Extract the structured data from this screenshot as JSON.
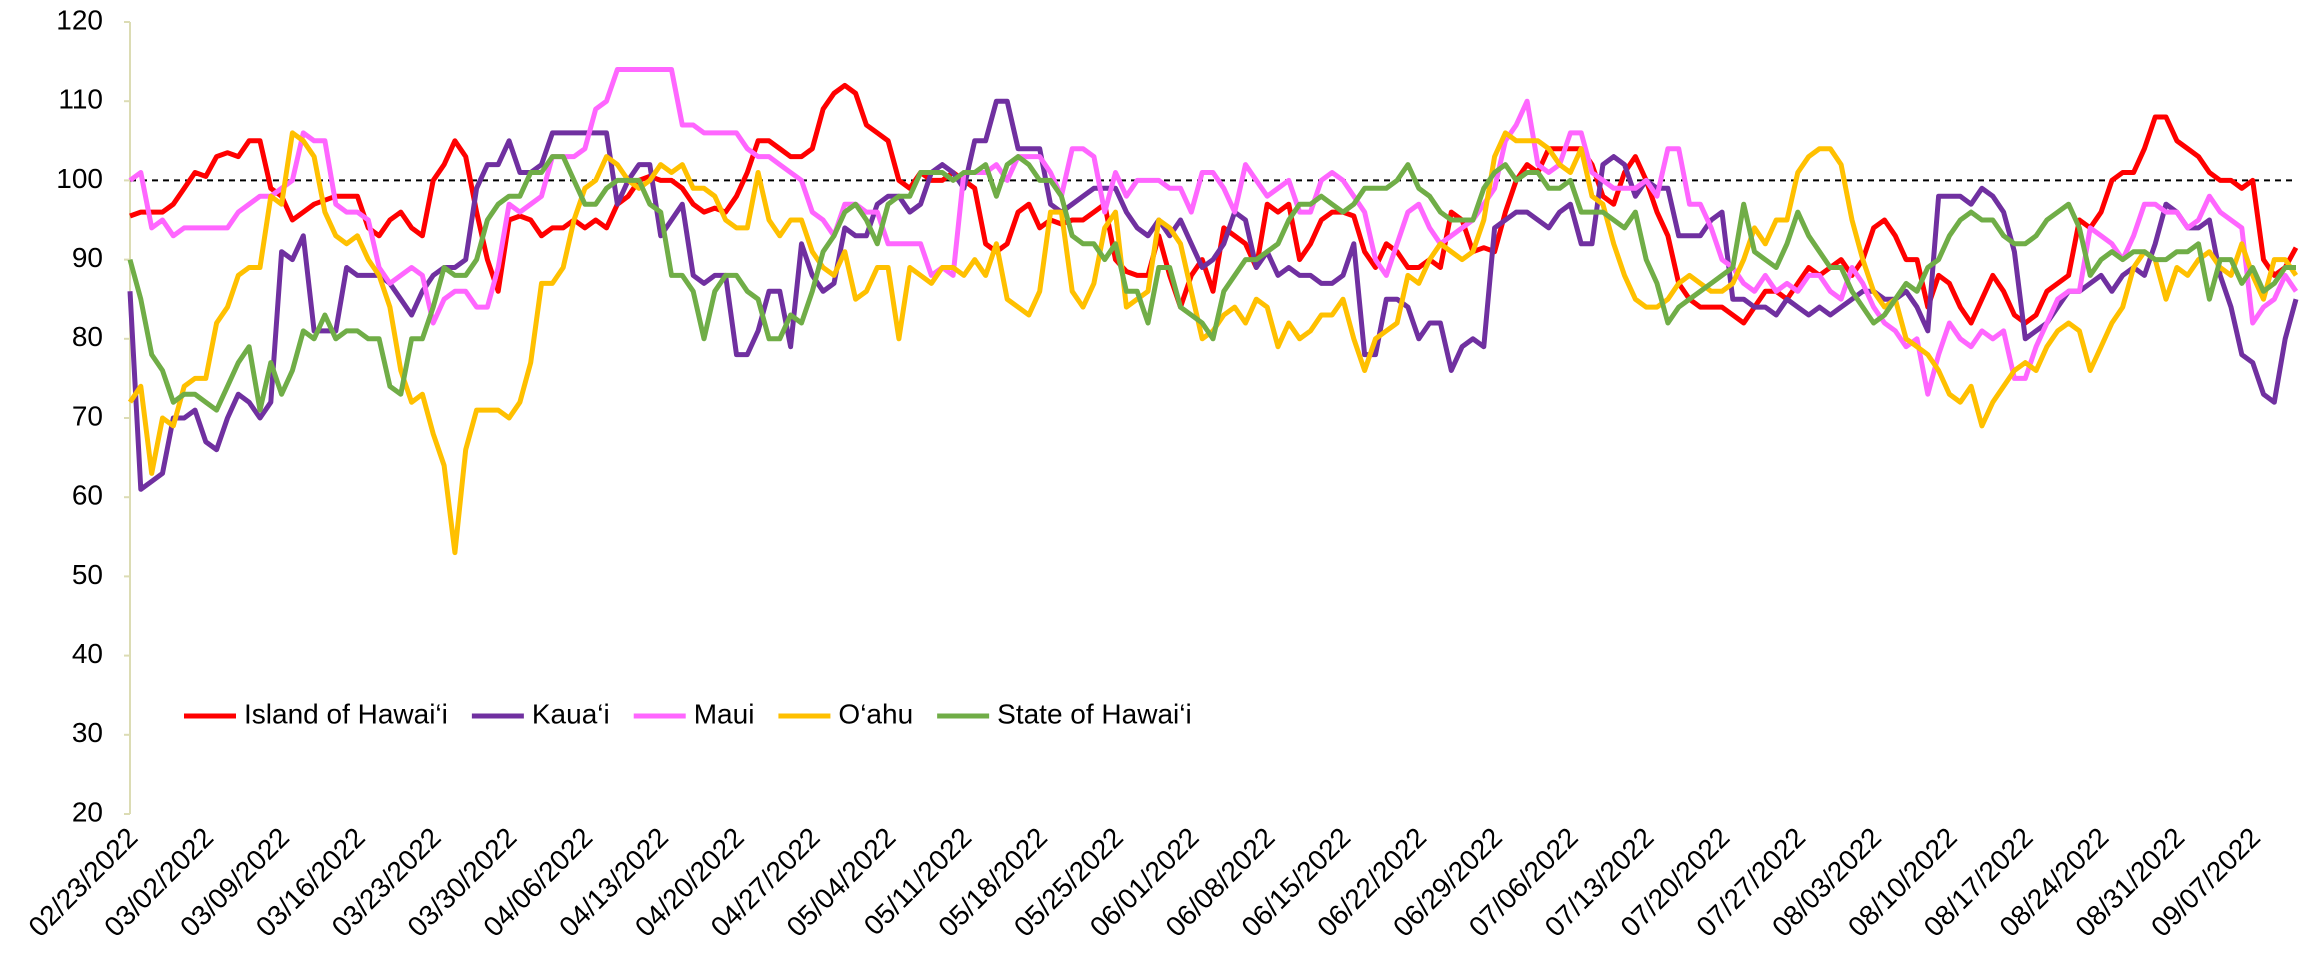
{
  "chart_data": {
    "type": "line",
    "categories": [
      "02/23/2022",
      null,
      null,
      null,
      null,
      null,
      null,
      "03/02/2022",
      null,
      null,
      null,
      null,
      null,
      null,
      "03/09/2022",
      null,
      null,
      null,
      null,
      null,
      null,
      "03/16/2022",
      null,
      null,
      null,
      null,
      null,
      null,
      "03/23/2022",
      null,
      null,
      null,
      null,
      null,
      null,
      "03/30/2022",
      null,
      null,
      null,
      null,
      null,
      null,
      "04/06/2022",
      null,
      null,
      null,
      null,
      null,
      null,
      "04/13/2022",
      null,
      null,
      null,
      null,
      null,
      null,
      "04/20/2022",
      null,
      null,
      null,
      null,
      null,
      null,
      "04/27/2022",
      null,
      null,
      null,
      null,
      null,
      null,
      "05/04/2022",
      null,
      null,
      null,
      null,
      null,
      null,
      "05/11/2022",
      null,
      null,
      null,
      null,
      null,
      null,
      "05/18/2022",
      null,
      null,
      null,
      null,
      null,
      null,
      "05/25/2022",
      null,
      null,
      null,
      null,
      null,
      null,
      "06/01/2022",
      null,
      null,
      null,
      null,
      null,
      null,
      "06/08/2022",
      null,
      null,
      null,
      null,
      null,
      null,
      "06/15/2022",
      null,
      null,
      null,
      null,
      null,
      null,
      "06/22/2022",
      null,
      null,
      null,
      null,
      null,
      null,
      "06/29/2022",
      null,
      null,
      null,
      null,
      null,
      null,
      "07/06/2022",
      null,
      null,
      null,
      null,
      null,
      null,
      "07/13/2022",
      null,
      null,
      null,
      null,
      null,
      null,
      "07/20/2022",
      null,
      null,
      null,
      null,
      null,
      null,
      "07/27/2022",
      null,
      null,
      null,
      null,
      null,
      null,
      "08/03/2022",
      null,
      null,
      null,
      null,
      null,
      null,
      "08/10/2022",
      null,
      null,
      null,
      null,
      null,
      null,
      "08/17/2022",
      null,
      null,
      null,
      null,
      null,
      null,
      "08/24/2022",
      null,
      null,
      null,
      null,
      null,
      null,
      "08/31/2022",
      null,
      null,
      null,
      null,
      null,
      null,
      "09/07/2022",
      null,
      null,
      null,
      null
    ],
    "series": [
      {
        "name": "Island of Hawai‘i",
        "color": "#ff0000",
        "values": [
          95.5,
          96,
          96,
          96,
          97,
          99,
          101,
          100.5,
          103,
          103.5,
          103,
          105,
          105,
          99,
          98,
          95,
          96,
          97,
          97.5,
          98,
          98,
          98,
          94,
          93,
          95,
          96,
          94,
          93,
          100,
          102,
          105,
          103,
          96,
          90,
          86,
          95,
          95.5,
          95,
          93,
          94,
          94,
          95,
          94,
          95,
          94,
          97,
          98,
          100,
          100.5,
          100,
          100,
          99,
          97,
          96,
          96.5,
          96,
          98,
          101,
          105,
          105,
          104,
          103,
          103,
          104,
          109,
          111,
          112,
          111,
          107,
          106,
          105,
          100,
          99,
          101,
          100,
          100,
          101,
          100,
          99,
          92,
          91,
          92,
          96,
          97,
          94,
          95,
          94.5,
          95,
          95,
          96,
          97,
          90,
          88.5,
          88,
          88,
          93,
          88,
          84,
          88,
          90,
          86,
          94,
          93,
          92,
          89,
          97,
          96,
          97,
          90,
          92,
          95,
          96,
          96,
          95.5,
          91,
          89,
          92,
          91,
          89,
          89,
          90,
          89,
          96,
          95,
          91,
          91.5,
          91,
          96,
          100,
          102,
          101,
          104,
          104,
          104,
          104,
          102,
          98,
          97,
          101,
          103,
          100,
          96,
          93,
          87,
          85,
          84,
          84,
          84,
          83,
          82,
          84,
          86,
          86,
          85,
          87,
          89,
          88,
          89,
          90,
          88,
          90,
          94,
          95,
          93,
          90,
          90,
          84,
          88,
          87,
          84,
          82,
          85,
          88,
          86,
          83,
          82,
          83,
          86,
          87,
          88,
          95,
          94,
          96,
          100,
          101,
          101,
          104,
          108,
          108,
          105,
          104,
          103,
          101,
          100,
          100,
          99,
          100,
          90,
          88,
          89,
          91.5
        ]
      },
      {
        "name": "Kaua‘i",
        "color": "#7030a0",
        "values": [
          86,
          61,
          62,
          63,
          70,
          70,
          71,
          67,
          66,
          70,
          73,
          72,
          70,
          72,
          91,
          90,
          93,
          81,
          81,
          81,
          89,
          88,
          88,
          88,
          87,
          85,
          83,
          86,
          88,
          89,
          89,
          90,
          99,
          102,
          102,
          105,
          101,
          101,
          102,
          106,
          106,
          106,
          106,
          106,
          106,
          97,
          100,
          102,
          102,
          93,
          95,
          97,
          88,
          87,
          88,
          88,
          78,
          78,
          81,
          86,
          86,
          79,
          92,
          88,
          86,
          87,
          94,
          93,
          93,
          97,
          98,
          98,
          96,
          97,
          101,
          102,
          101,
          99,
          105,
          105,
          110,
          110,
          104,
          104,
          104,
          97,
          96,
          97,
          98,
          99,
          99,
          99,
          96,
          94,
          93,
          95,
          93,
          95,
          92,
          89,
          90,
          92,
          96,
          95,
          89,
          91,
          88,
          89,
          88,
          88,
          87,
          87,
          88,
          92,
          78,
          78,
          85,
          85,
          84,
          80,
          82,
          82,
          76,
          79,
          80,
          79,
          94,
          95,
          96,
          96,
          95,
          94,
          96,
          97,
          92,
          92,
          102,
          103,
          102,
          98,
          100,
          99,
          99,
          93,
          93,
          93,
          95,
          96,
          85,
          85,
          84,
          84,
          83,
          85,
          84,
          83,
          84,
          83,
          84,
          85,
          86,
          86,
          85,
          85,
          86,
          84,
          81,
          98,
          98,
          98,
          97,
          99,
          98,
          96,
          91,
          80,
          81,
          82,
          84,
          86,
          86,
          87,
          88,
          86,
          88,
          89,
          88,
          92,
          97,
          96,
          94,
          94,
          95,
          88,
          84,
          78,
          77,
          73,
          72,
          80,
          85
        ]
      },
      {
        "name": "Maui",
        "color": "#ff66ff",
        "values": [
          100,
          101,
          94,
          95,
          93,
          94,
          94,
          94,
          94,
          94,
          96,
          97,
          98,
          98,
          99,
          100,
          106,
          105,
          105,
          97,
          96,
          96,
          95,
          89,
          87,
          88,
          89,
          88,
          82,
          85,
          86,
          86,
          84,
          84,
          89,
          97,
          96,
          97,
          98,
          103,
          103,
          103,
          104,
          109,
          110,
          114,
          114,
          114,
          114,
          114,
          114,
          107,
          107,
          106,
          106,
          106,
          106,
          104,
          103,
          103,
          102,
          101,
          100,
          96,
          95,
          93,
          97,
          97,
          96,
          96,
          92,
          92,
          92,
          92,
          88,
          89,
          88,
          101,
          101,
          101,
          102,
          100,
          103,
          103,
          103,
          101,
          98,
          104,
          104,
          103,
          96,
          101,
          98,
          100,
          100,
          100,
          99,
          99,
          96,
          101,
          101,
          99,
          96,
          102,
          100,
          98,
          99,
          100,
          96,
          96,
          100,
          101,
          100,
          98,
          96,
          90,
          88,
          92,
          96,
          97,
          94,
          92,
          93,
          94,
          95,
          97,
          99,
          105,
          107,
          110,
          102,
          101,
          102,
          106,
          106,
          101,
          100,
          99,
          99,
          99,
          100,
          98,
          104,
          104,
          97,
          97,
          94,
          90,
          89,
          87,
          86,
          88,
          86,
          87,
          86,
          88,
          88,
          86,
          85,
          89,
          87,
          84,
          82,
          81,
          79,
          80,
          73,
          78,
          82,
          80,
          79,
          81,
          80,
          81,
          75,
          75,
          79,
          82,
          85,
          86,
          86,
          94,
          93,
          92,
          90,
          93,
          97,
          97,
          96,
          96,
          94,
          95,
          98,
          96,
          95,
          94,
          82,
          84,
          85,
          88,
          86
        ]
      },
      {
        "name": "O‘ahu",
        "color": "#ffc000",
        "values": [
          72,
          74,
          63,
          70,
          69,
          74,
          75,
          75,
          82,
          84,
          88,
          89,
          89,
          98,
          97,
          106,
          105,
          103,
          96,
          93,
          92,
          93,
          90,
          88,
          84,
          76,
          72,
          73,
          68,
          64,
          53,
          66,
          71,
          71,
          71,
          70,
          72,
          77,
          87,
          87,
          89,
          95,
          99,
          100,
          103,
          102,
          100,
          99,
          100,
          102,
          101,
          102,
          99,
          99,
          98,
          95,
          94,
          94,
          101,
          95,
          93,
          95,
          95,
          91,
          89,
          88,
          91,
          85,
          86,
          89,
          89,
          80,
          89,
          88,
          87,
          89,
          89,
          88,
          90,
          88,
          92,
          85,
          84,
          83,
          86,
          96,
          96,
          86,
          84,
          87,
          94,
          96,
          84,
          85,
          86,
          95,
          94,
          92,
          86,
          80,
          81,
          83,
          84,
          82,
          85,
          84,
          79,
          82,
          80,
          81,
          83,
          83,
          85,
          80,
          76,
          80,
          81,
          82,
          88,
          87,
          90,
          92,
          91,
          90,
          91,
          95,
          103,
          106,
          105,
          105,
          105,
          104,
          102,
          101,
          104,
          98,
          97,
          92,
          88,
          85,
          84,
          84,
          85,
          87,
          88,
          87,
          86,
          86,
          87,
          90,
          94,
          92,
          95,
          95,
          101,
          103,
          104,
          104,
          102,
          95,
          90,
          86,
          84,
          85,
          80,
          79,
          78,
          76,
          73,
          72,
          74,
          69,
          72,
          74,
          76,
          77,
          76,
          79,
          81,
          82,
          81,
          76,
          79,
          82,
          84,
          89,
          91,
          90,
          85,
          89,
          88,
          90,
          91,
          89,
          88,
          92,
          88,
          85,
          90,
          90,
          88
        ]
      },
      {
        "name": "State of Hawai‘i",
        "color": "#70ad47",
        "values": [
          90,
          85,
          78,
          76,
          72,
          73,
          73,
          72,
          71,
          74,
          77,
          79,
          71,
          77,
          73,
          76,
          81,
          80,
          83,
          80,
          81,
          81,
          80,
          80,
          74,
          73,
          80,
          80,
          84,
          89,
          88,
          88,
          90,
          95,
          97,
          98,
          98,
          101,
          101,
          103,
          103,
          100,
          97,
          97,
          99,
          100,
          100,
          100,
          97,
          96,
          88,
          88,
          86,
          80,
          86,
          88,
          88,
          86,
          85,
          80,
          80,
          83,
          82,
          86,
          91,
          93,
          96,
          97,
          95,
          92,
          97,
          98,
          98,
          101,
          101,
          101,
          100,
          101,
          101,
          102,
          98,
          102,
          103,
          102,
          100,
          100,
          98,
          93,
          92,
          92,
          90,
          92,
          86,
          86,
          82,
          89,
          89,
          84,
          83,
          82,
          80,
          86,
          88,
          90,
          90,
          91,
          92,
          95,
          97,
          97,
          98,
          97,
          96,
          97,
          99,
          99,
          99,
          100,
          102,
          99,
          98,
          96,
          95,
          95,
          95,
          99,
          101,
          102,
          100,
          101,
          101,
          99,
          99,
          100,
          96,
          96,
          96,
          95,
          94,
          96,
          90,
          87,
          82,
          84,
          85,
          86,
          87,
          88,
          89,
          97,
          91,
          90,
          89,
          92,
          96,
          93,
          91,
          89,
          89,
          86,
          84,
          82,
          83,
          85,
          87,
          86,
          89,
          90,
          93,
          95,
          96,
          95,
          95,
          93,
          92,
          92,
          93,
          95,
          96,
          97,
          94,
          88,
          90,
          91,
          90,
          91,
          91,
          90,
          90,
          91,
          91,
          92,
          85,
          90,
          90,
          87,
          89,
          86,
          87,
          89,
          89
        ]
      }
    ],
    "ylim": [
      20,
      120
    ],
    "yticks": [
      20,
      30,
      40,
      50,
      60,
      70,
      80,
      90,
      100,
      110,
      120
    ],
    "reference_line": 100,
    "legend": "lower-left",
    "grid": false
  }
}
